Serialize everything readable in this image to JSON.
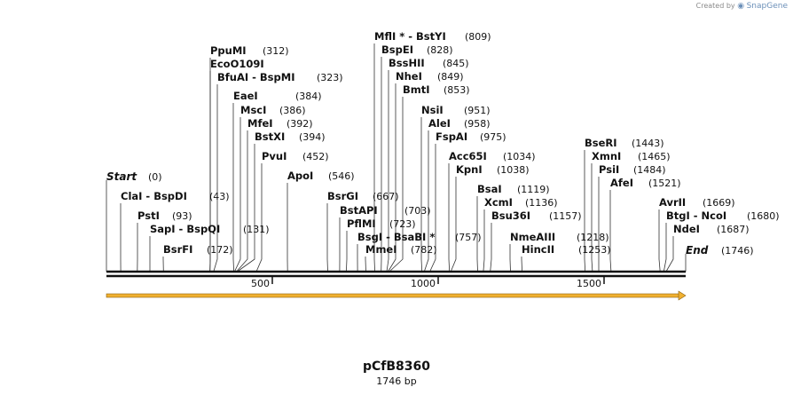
{
  "branding": {
    "created_by": "Created by",
    "app": "SnapGene"
  },
  "plasmid": {
    "name": "pCfB8360",
    "length_label": "1746 bp",
    "length": 1746
  },
  "terminals": {
    "start": {
      "label": "Start",
      "pos": "(0)"
    },
    "end": {
      "label": "End",
      "pos": "(1746)"
    }
  },
  "ruler": {
    "ticks": [
      {
        "value": 500,
        "label": "500"
      },
      {
        "value": 1000,
        "label": "1000"
      },
      {
        "value": 1500,
        "label": "1500"
      }
    ]
  },
  "feature": {
    "name": "orange-feature-arrow",
    "color": "#f0b030",
    "start": 0,
    "end": 1746
  },
  "sites": [
    {
      "names": [
        "ClaI",
        "BspDI"
      ],
      "pos": 43
    },
    {
      "names": [
        "PstI"
      ],
      "pos": 93
    },
    {
      "names": [
        "SapI",
        "BspQI"
      ],
      "pos": 131
    },
    {
      "names": [
        "BsrFI"
      ],
      "pos": 172
    },
    {
      "names": [
        "PpuMI"
      ],
      "pos": 312
    },
    {
      "names": [
        "EcoO109I"
      ],
      "pos": 312,
      "pos_hidden": true
    },
    {
      "names": [
        "BfuAI",
        "BspMI"
      ],
      "pos": 323
    },
    {
      "names": [
        "EaeI"
      ],
      "pos": 384
    },
    {
      "names": [
        "MscI"
      ],
      "pos": 386
    },
    {
      "names": [
        "MfeI"
      ],
      "pos": 392
    },
    {
      "names": [
        "BstXI"
      ],
      "pos": 394
    },
    {
      "names": [
        "PvuI"
      ],
      "pos": 452
    },
    {
      "names": [
        "ApoI"
      ],
      "pos": 546
    },
    {
      "names": [
        "BsrGI"
      ],
      "pos": 667
    },
    {
      "names": [
        "BstAPI"
      ],
      "pos": 703
    },
    {
      "names": [
        "PflMI"
      ],
      "pos": 723
    },
    {
      "names": [
        "BsgI",
        "BsaBI *"
      ],
      "pos": 757
    },
    {
      "names": [
        "MmeI"
      ],
      "pos": 782
    },
    {
      "names": [
        "MflI *",
        "BstYI"
      ],
      "pos": 809
    },
    {
      "names": [
        "BspEI"
      ],
      "pos": 828
    },
    {
      "names": [
        "BssHII"
      ],
      "pos": 845
    },
    {
      "names": [
        "NheI"
      ],
      "pos": 849
    },
    {
      "names": [
        "BmtI"
      ],
      "pos": 853
    },
    {
      "names": [
        "NsiI"
      ],
      "pos": 951
    },
    {
      "names": [
        "AleI"
      ],
      "pos": 958
    },
    {
      "names": [
        "FspAI"
      ],
      "pos": 975
    },
    {
      "names": [
        "Acc65I"
      ],
      "pos": 1034
    },
    {
      "names": [
        "KpnI"
      ],
      "pos": 1038
    },
    {
      "names": [
        "BsaI"
      ],
      "pos": 1119
    },
    {
      "names": [
        "XcmI"
      ],
      "pos": 1136
    },
    {
      "names": [
        "Bsu36I"
      ],
      "pos": 1157
    },
    {
      "names": [
        "NmeAIII"
      ],
      "pos": 1218
    },
    {
      "names": [
        "HincII"
      ],
      "pos": 1253
    },
    {
      "names": [
        "BseRI"
      ],
      "pos": 1443
    },
    {
      "names": [
        "XmnI"
      ],
      "pos": 1465
    },
    {
      "names": [
        "PsiI"
      ],
      "pos": 1484
    },
    {
      "names": [
        "AfeI"
      ],
      "pos": 1521
    },
    {
      "names": [
        "AvrII"
      ],
      "pos": 1669
    },
    {
      "names": [
        "BtgI",
        "NcoI"
      ],
      "pos": 1680
    },
    {
      "names": [
        "NdeI"
      ],
      "pos": 1687
    }
  ]
}
